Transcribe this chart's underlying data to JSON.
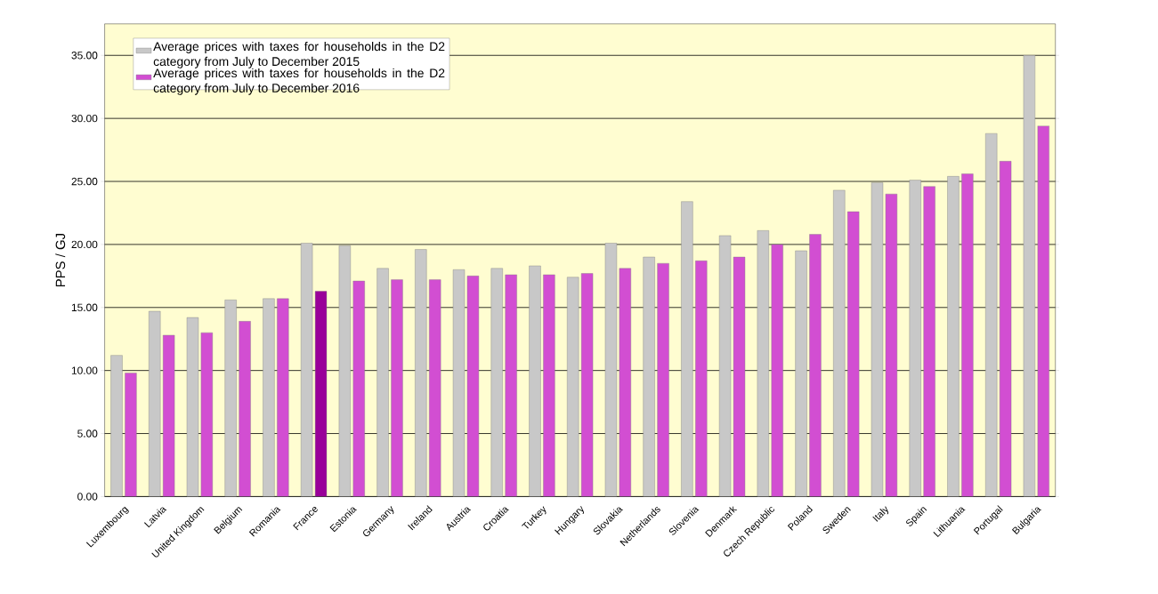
{
  "chart_data": {
    "type": "bar",
    "ylabel": "PPS / GJ",
    "categories": [
      "Luxembourg",
      "Latvia",
      "United Kingdom",
      "Belgium",
      "Romania",
      "France",
      "Estonia",
      "Germany",
      "Ireland",
      "Austria",
      "Croatia",
      "Turkey",
      "Hungary",
      "Slovakia",
      "Netherlands",
      "Slovenia",
      "Denmark",
      "Czech Republic",
      "Poland",
      "Sweden",
      "Italy",
      "Spain",
      "Lithuania",
      "Portugal",
      "Bulgaria"
    ],
    "series": [
      {
        "name": "Average prices with taxes for households in the D2 category from July to December 2015",
        "color": "#c8c8c8",
        "values": [
          11.2,
          14.7,
          14.2,
          15.6,
          15.7,
          20.1,
          19.9,
          18.1,
          19.6,
          18.0,
          18.1,
          18.3,
          17.4,
          20.1,
          19.0,
          23.4,
          20.7,
          21.1,
          19.5,
          24.3,
          24.9,
          25.1,
          25.4,
          28.8,
          35.0
        ]
      },
      {
        "name": "Average prices with taxes for households in the D2 category from July to December 2016",
        "color": "#d24ed2",
        "colors": [
          "#d24ed2",
          "#d24ed2",
          "#d24ed2",
          "#d24ed2",
          "#d24ed2",
          "#990099",
          "#d24ed2",
          "#d24ed2",
          "#d24ed2",
          "#d24ed2",
          "#d24ed2",
          "#d24ed2",
          "#d24ed2",
          "#d24ed2",
          "#d24ed2",
          "#d24ed2",
          "#d24ed2",
          "#d24ed2",
          "#d24ed2",
          "#d24ed2",
          "#d24ed2",
          "#d24ed2",
          "#d24ed2",
          "#d24ed2",
          "#d24ed2"
        ],
        "values": [
          9.8,
          12.8,
          13.0,
          13.9,
          15.7,
          16.3,
          17.1,
          17.2,
          17.2,
          17.5,
          17.6,
          17.6,
          17.7,
          18.1,
          18.5,
          18.7,
          19.0,
          20.0,
          20.8,
          22.6,
          24.0,
          24.6,
          25.6,
          26.6,
          29.4
        ]
      }
    ],
    "ylim": [
      0,
      37.5
    ],
    "yticks": [
      {
        "value": 0,
        "label": "0.00"
      },
      {
        "value": 5,
        "label": "5.00"
      },
      {
        "value": 10,
        "label": "10.00"
      },
      {
        "value": 15,
        "label": "15.00"
      },
      {
        "value": 20,
        "label": "20.00"
      },
      {
        "value": 25,
        "label": "25.00"
      },
      {
        "value": 30,
        "label": "30.00"
      },
      {
        "value": 35,
        "label": "35.00"
      }
    ],
    "grid": "y",
    "legend": "top left"
  }
}
